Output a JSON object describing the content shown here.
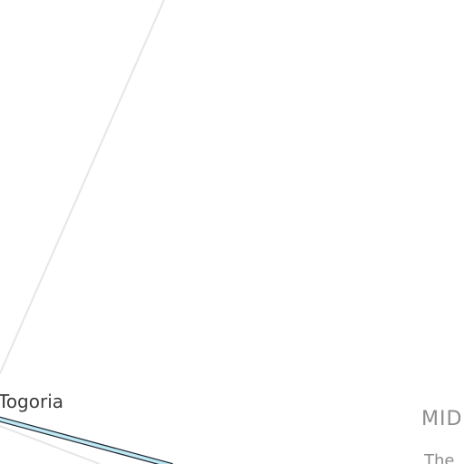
{
  "map": {
    "place_label": "Togoria",
    "region_label": "MID",
    "subtitle_fragment": "The"
  },
  "colors": {
    "background": "#ffffff",
    "grid_line": "#e6e6e6",
    "route_fill": "#bfe8f2",
    "route_outline": "#1f2a36",
    "place_text": "#3c3c3c",
    "region_text": "#8c8c8c"
  }
}
